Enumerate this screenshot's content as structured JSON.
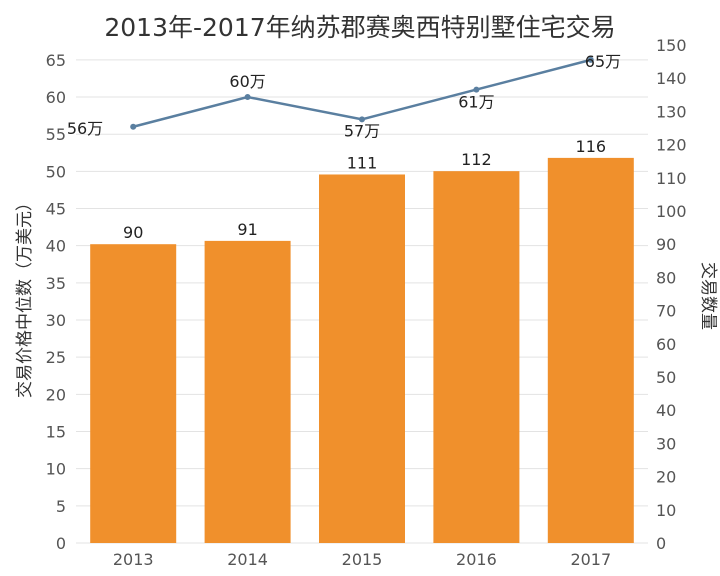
{
  "chart_data": {
    "type": "bar+line",
    "title": "2013年-2017年纳苏郡赛奥西特别墅住宅交易",
    "categories": [
      "2013",
      "2014",
      "2015",
      "2016",
      "2017"
    ],
    "ylabel_left": "交易价格中位数（万美元）",
    "ylabel_right": "交易数量",
    "ylim_left": [
      0,
      67
    ],
    "ylim_right": [
      0,
      150
    ],
    "yticks_left": [
      0,
      5,
      10,
      15,
      20,
      25,
      30,
      35,
      40,
      45,
      50,
      55,
      60,
      65
    ],
    "yticks_right": [
      0,
      10,
      20,
      30,
      40,
      50,
      60,
      70,
      80,
      90,
      100,
      110,
      120,
      130,
      140,
      150
    ],
    "grid": true,
    "series": [
      {
        "type": "bar",
        "axis": "right",
        "color": "#F0902C",
        "values": [
          90,
          91,
          111,
          112,
          116
        ],
        "labels": [
          "90",
          "91",
          "111",
          "112",
          "116"
        ]
      },
      {
        "type": "line",
        "axis": "left",
        "color": "#5A7FA0",
        "values": [
          56,
          60,
          57,
          61,
          65
        ],
        "labels": [
          "56万",
          "60万",
          "57万",
          "61万",
          "65万"
        ]
      }
    ]
  }
}
